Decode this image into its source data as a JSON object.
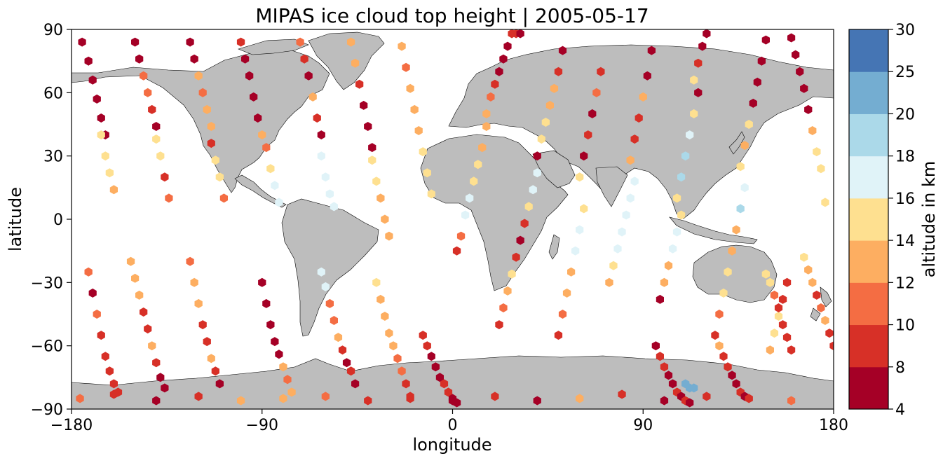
{
  "chart_data": {
    "type": "scatter",
    "title": "MIPAS ice cloud top height | 2005-05-17",
    "xlabel": "longitude",
    "ylabel": "latitude",
    "xlim": [
      -180,
      180
    ],
    "ylim": [
      -90,
      90
    ],
    "xticks": [
      -180,
      -90,
      0,
      90,
      180
    ],
    "xtick_labels": [
      "−180",
      "−90",
      "0",
      "90",
      "180"
    ],
    "yticks": [
      -90,
      -60,
      -30,
      0,
      30,
      60,
      90
    ],
    "ytick_labels": [
      "−90",
      "−60",
      "−30",
      "0",
      "30",
      "60",
      "90"
    ],
    "grid": false,
    "background_map": "world coastlines, land in light gray",
    "land_color": "#bdbdbd",
    "colorbar": {
      "label": "altitude in km",
      "boundaries": [
        4,
        8,
        10,
        12,
        14,
        16,
        18,
        20,
        25,
        30
      ],
      "tick_labels": [
        "4",
        "8",
        "10",
        "12",
        "14",
        "16",
        "18",
        "20",
        "25",
        "30"
      ],
      "colors": [
        "#a50026",
        "#d73027",
        "#f46d43",
        "#fdae61",
        "#fee090",
        "#e0f3f8",
        "#abd9e9",
        "#74add1",
        "#4575b4"
      ]
    },
    "tracks": [
      {
        "lon": [
          -175,
          -172,
          -170,
          -168,
          -166,
          -164
        ],
        "lat": [
          84,
          75,
          66,
          57,
          48,
          40
        ],
        "alt": [
          6,
          6,
          6,
          6,
          6,
          6
        ]
      },
      {
        "lon": [
          -166,
          -164,
          -162,
          -160
        ],
        "lat": [
          40,
          30,
          22,
          14
        ],
        "alt": [
          15,
          15,
          14,
          12
        ]
      },
      {
        "lon": [
          -150,
          -148,
          -146,
          -144,
          -142,
          -140
        ],
        "lat": [
          84,
          76,
          68,
          60,
          52,
          44
        ],
        "alt": [
          6,
          6,
          11,
          11,
          8,
          6
        ]
      },
      {
        "lon": [
          -140,
          -138,
          -136,
          -134
        ],
        "lat": [
          38,
          30,
          20,
          10
        ],
        "alt": [
          15,
          14,
          9,
          11
        ]
      },
      {
        "lon": [
          -124,
          -122,
          -120,
          -118,
          -116,
          -114
        ],
        "lat": [
          84,
          76,
          68,
          60,
          52,
          44
        ],
        "alt": [
          6,
          6,
          13,
          11,
          12,
          12
        ]
      },
      {
        "lon": [
          -114,
          -112,
          -110,
          -108
        ],
        "lat": [
          36,
          28,
          20,
          10
        ],
        "alt": [
          9,
          15,
          14,
          11
        ]
      },
      {
        "lon": [
          -100,
          -98,
          -96,
          -94,
          -92,
          -90
        ],
        "lat": [
          84,
          76,
          68,
          58,
          48,
          40
        ],
        "alt": [
          8,
          6,
          6,
          6,
          6,
          13
        ]
      },
      {
        "lon": [
          -88,
          -86,
          -84,
          -82
        ],
        "lat": [
          34,
          24,
          16,
          8
        ],
        "alt": [
          11,
          15,
          16,
          16
        ]
      },
      {
        "lon": [
          -72,
          -70,
          -68,
          -66,
          -64,
          -62
        ],
        "lat": [
          84,
          76,
          68,
          58,
          48,
          40
        ],
        "alt": [
          11,
          8,
          6,
          13,
          8,
          6
        ]
      },
      {
        "lon": [
          -62,
          -60,
          -58,
          -56
        ],
        "lat": [
          30,
          20,
          12,
          6
        ],
        "alt": [
          16,
          16,
          16,
          16
        ]
      },
      {
        "lon": [
          -48,
          -46,
          -44,
          -42,
          -40,
          -38
        ],
        "lat": [
          84,
          74,
          64,
          54,
          44,
          34
        ],
        "alt": [
          13,
          12,
          8,
          6,
          6,
          6
        ]
      },
      {
        "lon": [
          -38,
          -36,
          -34,
          -32,
          -30
        ],
        "lat": [
          28,
          18,
          10,
          0,
          -8
        ],
        "alt": [
          15,
          15,
          13,
          12,
          13
        ]
      },
      {
        "lon": [
          -24,
          -22,
          -20,
          -18,
          -16,
          -14,
          -12,
          -10
        ],
        "lat": [
          82,
          72,
          62,
          52,
          42,
          32,
          22,
          12
        ],
        "alt": [
          12,
          11,
          12,
          12,
          13,
          15,
          14,
          15
        ]
      },
      {
        "lon": [
          2,
          4,
          6,
          8,
          10,
          12,
          14,
          16
        ],
        "lat": [
          -15,
          -8,
          2,
          10,
          18,
          26,
          34,
          44
        ],
        "alt": [
          8,
          11,
          16,
          16,
          15,
          14,
          13,
          12
        ]
      },
      {
        "lon": [
          16,
          18,
          20,
          22,
          24,
          26,
          28,
          30,
          32
        ],
        "lat": [
          50,
          58,
          64,
          70,
          76,
          82,
          88,
          88,
          88
        ],
        "alt": [
          13,
          11,
          9,
          6,
          6,
          6,
          9,
          8,
          6
        ]
      },
      {
        "lon": [
          22,
          24,
          26,
          28,
          30,
          32,
          34,
          36,
          38,
          40
        ],
        "lat": [
          -50,
          -42,
          -34,
          -26,
          -18,
          -10,
          -2,
          6,
          14,
          22
        ],
        "alt": [
          8,
          10,
          12,
          15,
          9,
          6,
          8,
          15,
          16,
          16
        ]
      },
      {
        "lon": [
          40,
          42,
          44,
          46,
          48,
          50,
          52
        ],
        "lat": [
          30,
          38,
          46,
          54,
          62,
          70,
          80
        ],
        "alt": [
          6,
          15,
          14,
          13,
          12,
          9,
          6
        ]
      },
      {
        "lon": [
          50,
          52,
          54,
          56,
          58,
          60,
          62
        ],
        "lat": [
          -55,
          -45,
          -35,
          -25,
          -15,
          -5,
          5
        ],
        "alt": [
          8,
          10,
          12,
          13,
          16,
          16,
          15
        ]
      },
      {
        "lon": [
          60,
          62,
          64,
          66,
          68,
          70
        ],
        "lat": [
          20,
          30,
          40,
          50,
          60,
          70
        ],
        "alt": [
          15,
          6,
          9,
          6,
          11,
          8
        ]
      },
      {
        "lon": [
          74,
          76,
          78,
          80,
          82,
          84,
          86
        ],
        "lat": [
          -30,
          -22,
          -14,
          -6,
          2,
          10,
          18
        ],
        "alt": [
          13,
          14,
          16,
          16,
          16,
          16,
          16
        ]
      },
      {
        "lon": [
          84,
          86,
          88,
          90,
          92,
          94
        ],
        "lat": [
          28,
          38,
          48,
          58,
          68,
          80
        ],
        "alt": [
          12,
          8,
          8,
          13,
          6,
          6
        ]
      },
      {
        "lon": [
          98,
          100,
          102,
          104,
          106,
          108
        ],
        "lat": [
          -38,
          -30,
          -22,
          -14,
          -6,
          2
        ],
        "alt": [
          6,
          13,
          13,
          16,
          16,
          15
        ]
      },
      {
        "lon": [
          106,
          108,
          110,
          112,
          114,
          116
        ],
        "lat": [
          10,
          20,
          30,
          40,
          50,
          60
        ],
        "alt": [
          15,
          18,
          18,
          16,
          15,
          6
        ]
      },
      {
        "lon": [
          114,
          116,
          118,
          120
        ],
        "lat": [
          66,
          74,
          82,
          88
        ],
        "alt": [
          15,
          8,
          6,
          6
        ]
      },
      {
        "lon": [
          126,
          128,
          130,
          132,
          134,
          136,
          138
        ],
        "lat": [
          -45,
          -35,
          -25,
          -15,
          -5,
          5,
          15
        ],
        "alt": [
          10,
          15,
          14,
          12,
          13,
          18,
          16
        ]
      },
      {
        "lon": [
          136,
          138,
          140,
          142,
          144,
          146,
          148
        ],
        "lat": [
          25,
          35,
          45,
          55,
          65,
          75,
          85
        ],
        "alt": [
          15,
          13,
          14,
          6,
          6,
          6,
          6
        ]
      },
      {
        "lon": [
          150,
          152,
          154,
          156,
          158
        ],
        "lat": [
          -62,
          -54,
          -46,
          -38,
          -30
        ],
        "alt": [
          13,
          15,
          14,
          9,
          8
        ]
      },
      {
        "lon": [
          160,
          162,
          164,
          166,
          168,
          170,
          172,
          174,
          176
        ],
        "lat": [
          86,
          78,
          70,
          62,
          52,
          42,
          32,
          24,
          8
        ],
        "alt": [
          6,
          6,
          6,
          6,
          6,
          13,
          14,
          15,
          15
        ]
      },
      {
        "lon": [
          -172,
          -170,
          -168,
          -166,
          -164,
          -162,
          -160,
          -158
        ],
        "lat": [
          -25,
          -35,
          -45,
          -55,
          -65,
          -72,
          -78,
          -82
        ],
        "alt": [
          11,
          6,
          10,
          8,
          8,
          8,
          8,
          8
        ]
      },
      {
        "lon": [
          -152,
          -150,
          -148,
          -146,
          -144,
          -142,
          -140,
          -138,
          -136
        ],
        "lat": [
          -20,
          -28,
          -36,
          -44,
          -52,
          -60,
          -68,
          -75,
          -80
        ],
        "alt": [
          13,
          12,
          13,
          8,
          8,
          12,
          8,
          6,
          6
        ]
      },
      {
        "lon": [
          -124,
          -122,
          -120,
          -118,
          -116,
          -114,
          -112,
          -110
        ],
        "lat": [
          -20,
          -30,
          -40,
          -50,
          -58,
          -66,
          -72,
          -78
        ],
        "alt": [
          11,
          13,
          12,
          8,
          8,
          12,
          8,
          6
        ]
      },
      {
        "lon": [
          -90,
          -88,
          -86,
          -84,
          -82,
          -80,
          -78,
          -76
        ],
        "lat": [
          -30,
          -40,
          -50,
          -58,
          -64,
          -70,
          -76,
          -82
        ],
        "alt": [
          6,
          6,
          6,
          6,
          6,
          12,
          11,
          12
        ]
      },
      {
        "lon": [
          -62,
          -60,
          -58,
          -56,
          -54,
          -52,
          -50,
          -48,
          -46
        ],
        "lat": [
          -25,
          -32,
          -40,
          -48,
          -56,
          -62,
          -68,
          -72,
          -78
        ],
        "alt": [
          16,
          16,
          10,
          11,
          12,
          8,
          6,
          8,
          6
        ]
      },
      {
        "lon": [
          -36,
          -34,
          -32,
          -30,
          -28,
          -26,
          -24,
          -22,
          -20
        ],
        "lat": [
          -30,
          -38,
          -46,
          -54,
          -60,
          -66,
          -72,
          -78,
          -84
        ],
        "alt": [
          15,
          13,
          13,
          12,
          12,
          11,
          10,
          8,
          8
        ]
      },
      {
        "lon": [
          -14,
          -12,
          -10,
          -8,
          -6,
          -4,
          -2,
          0,
          2
        ],
        "lat": [
          -55,
          -60,
          -65,
          -70,
          -75,
          -78,
          -82,
          -85,
          -87
        ],
        "alt": [
          8,
          8,
          6,
          6,
          6,
          8,
          8,
          6,
          6
        ]
      },
      {
        "lon": [
          96,
          98,
          100,
          102,
          104,
          106,
          108,
          110,
          112
        ],
        "lat": [
          -60,
          -65,
          -70,
          -74,
          -78,
          -82,
          -84,
          -86,
          -87
        ],
        "alt": [
          6,
          8,
          8,
          6,
          6,
          8,
          6,
          8,
          6
        ]
      },
      {
        "lon": [
          124,
          126,
          128,
          130,
          132,
          134,
          136,
          138
        ],
        "lat": [
          -55,
          -60,
          -65,
          -70,
          -74,
          -78,
          -82,
          -84
        ],
        "alt": [
          8,
          12,
          8,
          8,
          6,
          6,
          8,
          6
        ]
      },
      {
        "lon": [
          166,
          168,
          170,
          172,
          174,
          176,
          178,
          180
        ],
        "lat": [
          -18,
          -24,
          -30,
          -36,
          -42,
          -48,
          -54,
          -60
        ],
        "alt": [
          15,
          12,
          12,
          9,
          11,
          13,
          8,
          8
        ]
      },
      {
        "lon": [
          148,
          150,
          152,
          154,
          156,
          158,
          160
        ],
        "lat": [
          -26,
          -30,
          -36,
          -42,
          -50,
          -56,
          -62
        ],
        "alt": [
          15,
          14,
          10,
          9,
          8,
          8,
          8
        ]
      },
      {
        "lon": [
          -176,
          -160,
          -140,
          -120,
          -100,
          -80,
          -60,
          -40,
          -20,
          0,
          20,
          40,
          60,
          80,
          100,
          120,
          140,
          160
        ],
        "lat": [
          -85,
          -83,
          -86,
          -84,
          -86,
          -85,
          -84,
          -86,
          -85,
          -86,
          -84,
          -86,
          -85,
          -83,
          -86,
          -84,
          -85,
          -86
        ],
        "alt": [
          10,
          8,
          6,
          8,
          12,
          12,
          11,
          8,
          8,
          6,
          8,
          6,
          12,
          8,
          6,
          8,
          8,
          10
        ]
      },
      {
        "lon": [
          110,
          112,
          114
        ],
        "lat": [
          -78,
          -80,
          -80
        ],
        "alt": [
          22,
          22,
          22
        ]
      }
    ]
  }
}
